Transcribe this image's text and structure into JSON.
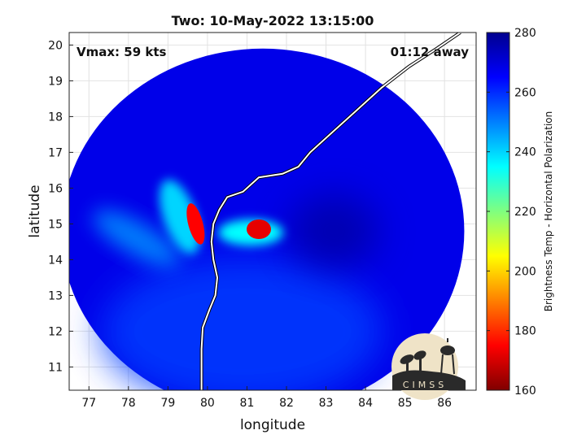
{
  "chart_data": {
    "type": "heatmap",
    "title": "Two: 10-May-2022 13:15:00",
    "annotations": {
      "vmax": "Vmax: 59 kts",
      "away": "01:12 away"
    },
    "xlabel": "longitude",
    "ylabel": "latitude",
    "xlim": [
      76.5,
      86.8
    ],
    "ylim": [
      10.35,
      20.35
    ],
    "xticks": [
      77,
      78,
      79,
      80,
      81,
      82,
      83,
      84,
      85,
      86
    ],
    "yticks": [
      11,
      12,
      13,
      14,
      15,
      16,
      17,
      18,
      19,
      20
    ],
    "grid": true,
    "colorbar": {
      "label": "Brightness Temp - Horizontal Polarization",
      "range": [
        160,
        280
      ],
      "ticks": [
        160,
        180,
        200,
        220,
        240,
        260,
        280
      ],
      "colormap": "jet"
    },
    "swath": {
      "center": [
        81.4,
        14.8
      ],
      "radius_deg": 5.1,
      "background_value": 268
    },
    "features": [
      {
        "name": "core",
        "lon": 81.3,
        "lat": 14.85,
        "value": 172
      },
      {
        "name": "band",
        "lon": 79.7,
        "lat": 15.0,
        "value": 175
      },
      {
        "name": "outer-band",
        "lon": 79.3,
        "lat": 15.2,
        "value": 240
      },
      {
        "name": "spiral",
        "lon": 78.2,
        "lat": 14.6,
        "value": 248
      }
    ],
    "coastline": [
      [
        79.85,
        10.35
      ],
      [
        79.85,
        10.9
      ],
      [
        79.85,
        11.5
      ],
      [
        79.88,
        12.1
      ],
      [
        80.05,
        12.6
      ],
      [
        80.2,
        13.0
      ],
      [
        80.25,
        13.5
      ],
      [
        80.15,
        14.0
      ],
      [
        80.1,
        14.5
      ],
      [
        80.15,
        15.0
      ],
      [
        80.3,
        15.4
      ],
      [
        80.5,
        15.75
      ],
      [
        80.9,
        15.9
      ],
      [
        81.3,
        16.3
      ],
      [
        81.9,
        16.4
      ],
      [
        82.3,
        16.6
      ],
      [
        82.6,
        17.0
      ],
      [
        83.2,
        17.6
      ],
      [
        83.8,
        18.2
      ],
      [
        84.4,
        18.8
      ],
      [
        85.1,
        19.4
      ],
      [
        85.8,
        19.9
      ],
      [
        86.4,
        20.35
      ]
    ]
  },
  "logo": {
    "text": "CIMSS"
  }
}
